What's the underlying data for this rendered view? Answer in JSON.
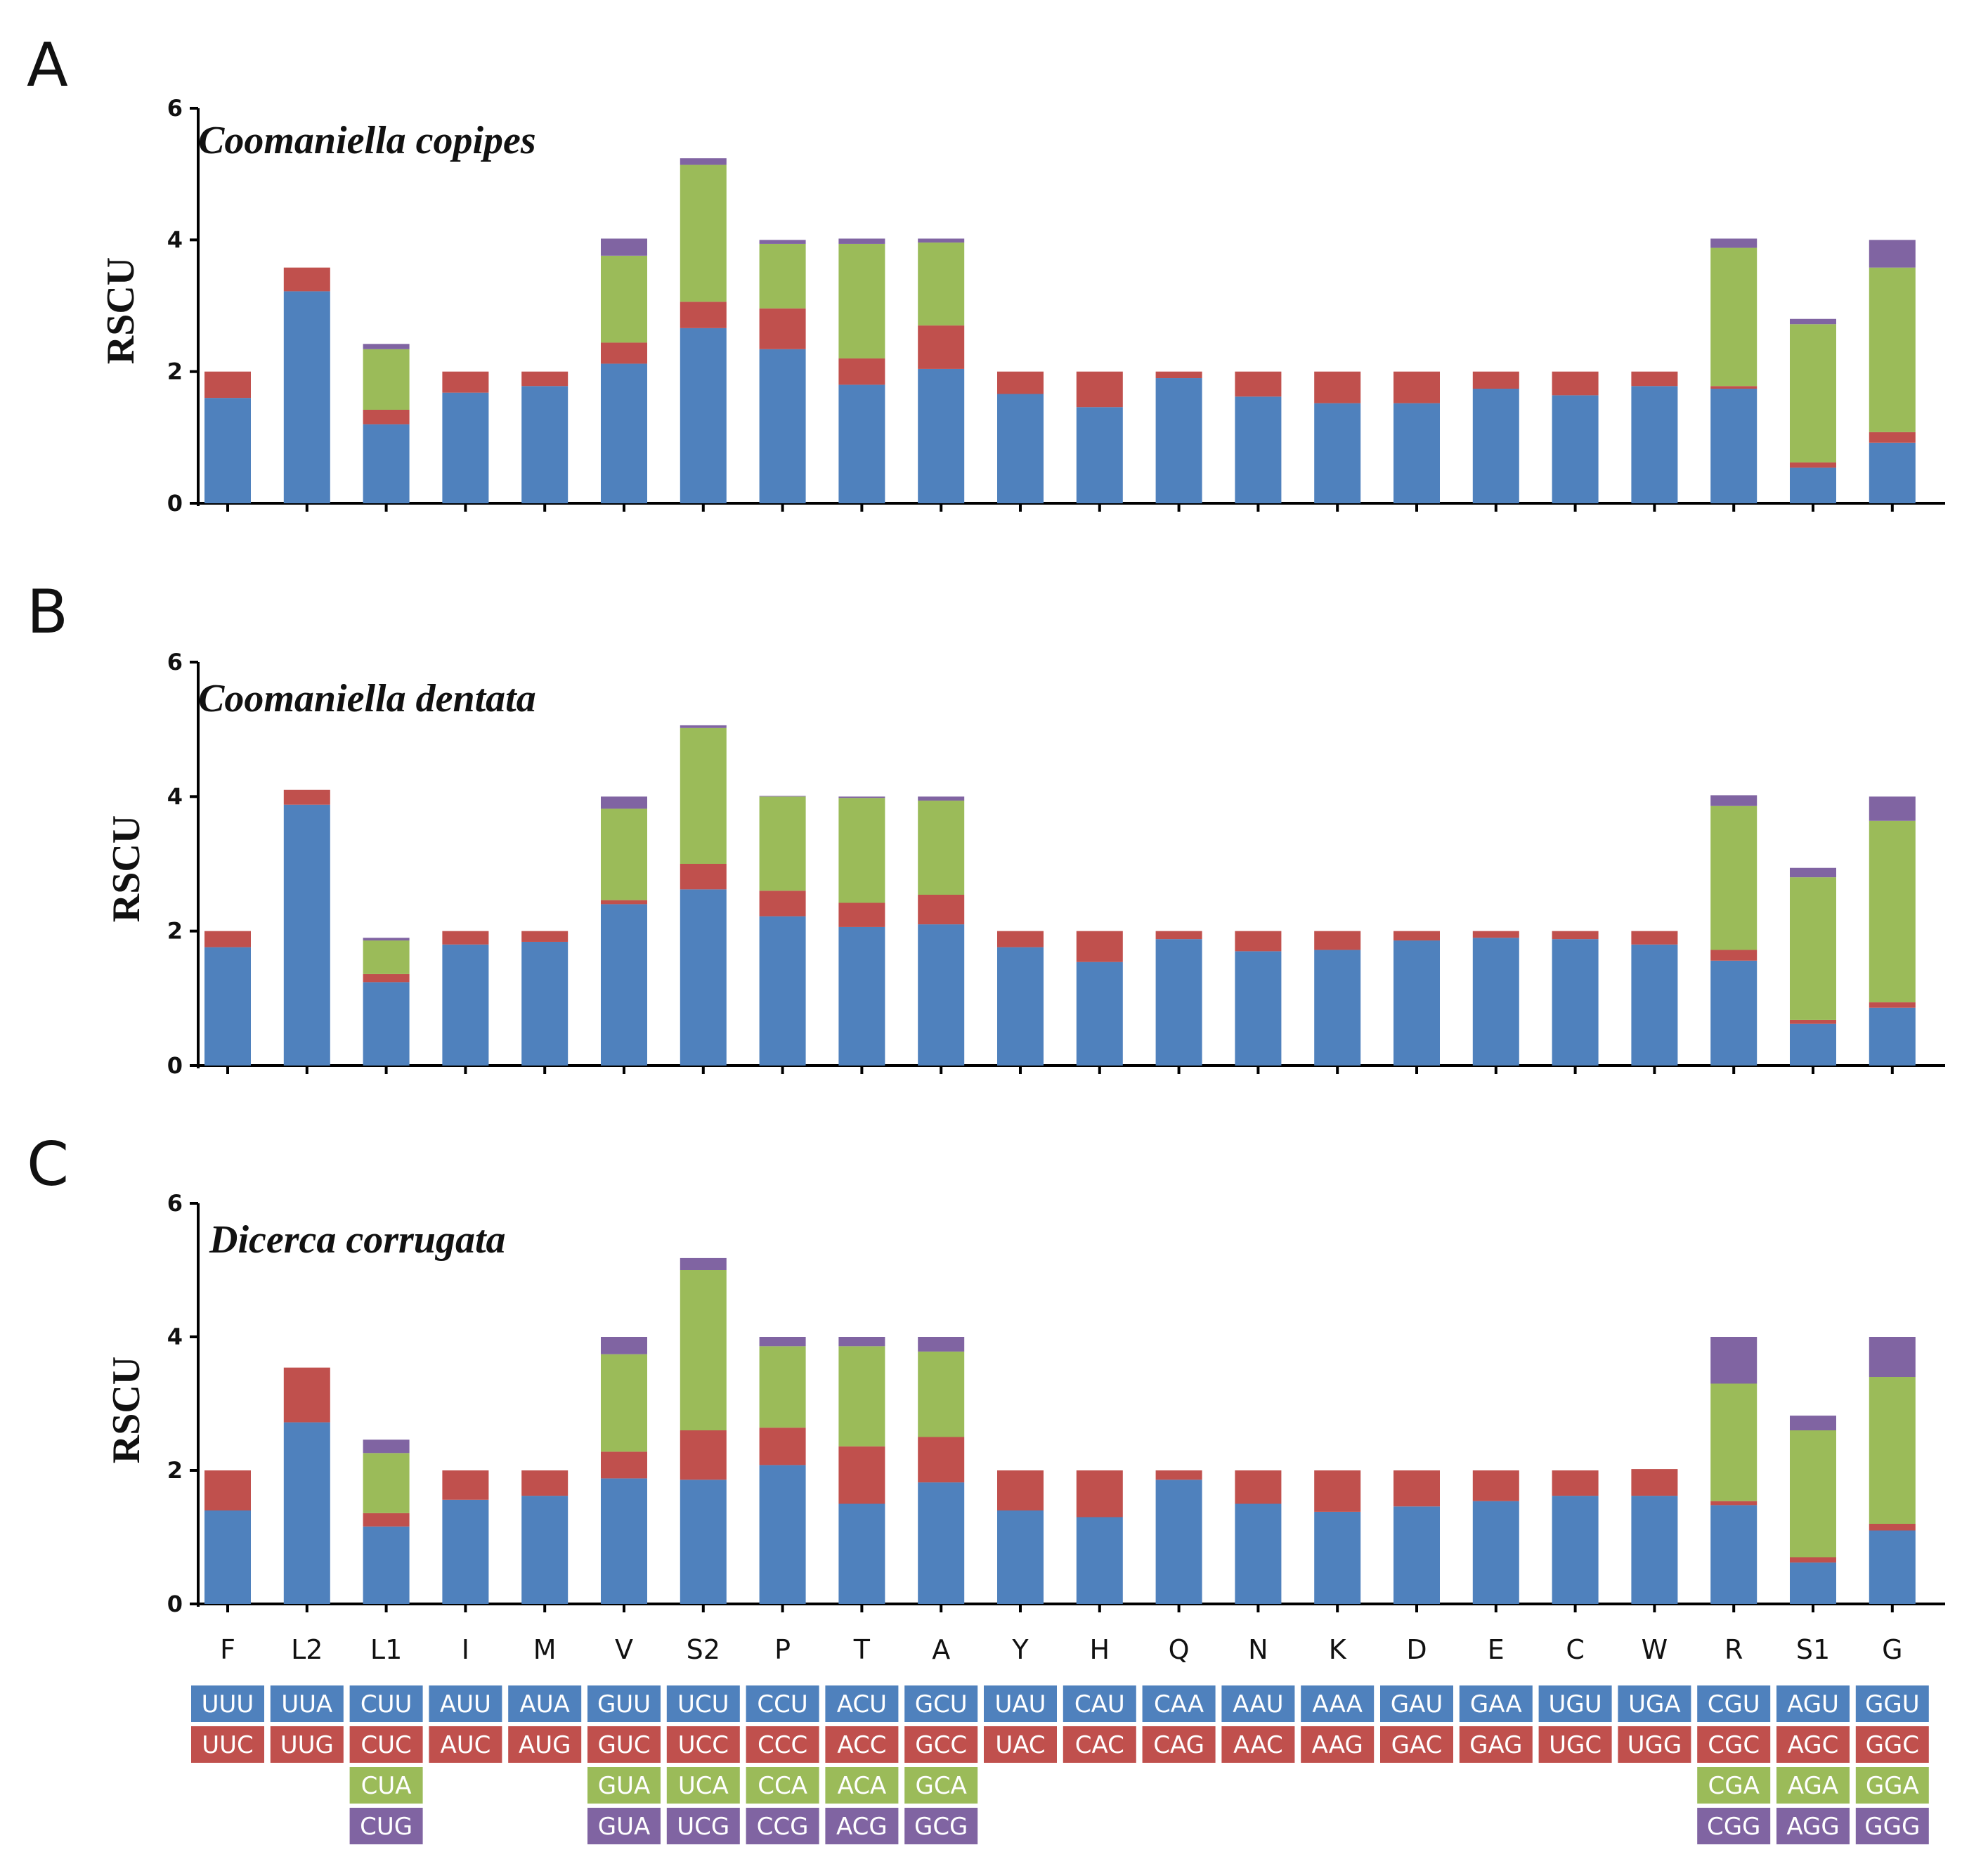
{
  "chart_data": {
    "type": "bar",
    "stacked": true,
    "ylabel": "RSCU",
    "ylim": [
      0,
      6
    ],
    "yticks": [
      0,
      2,
      4,
      6
    ],
    "categories": [
      "F",
      "L2",
      "L1",
      "I",
      "M",
      "V",
      "S2",
      "P",
      "T",
      "A",
      "Y",
      "H",
      "Q",
      "N",
      "K",
      "D",
      "E",
      "C",
      "W",
      "R",
      "S1",
      "G"
    ],
    "series_colors": [
      "#4f81bd",
      "#c0504d",
      "#9bbb59",
      "#8064a2"
    ],
    "codons": [
      [
        "UUU",
        "UUC"
      ],
      [
        "UUA",
        "UUG"
      ],
      [
        "CUU",
        "CUC",
        "CUA",
        "CUG"
      ],
      [
        "AUU",
        "AUC"
      ],
      [
        "AUA",
        "AUG"
      ],
      [
        "GUU",
        "GUC",
        "GUA",
        "GUA"
      ],
      [
        "UCU",
        "UCC",
        "UCA",
        "UCG"
      ],
      [
        "CCU",
        "CCC",
        "CCA",
        "CCG"
      ],
      [
        "ACU",
        "ACC",
        "ACA",
        "ACG"
      ],
      [
        "GCU",
        "GCC",
        "GCA",
        "GCG"
      ],
      [
        "UAU",
        "UAC"
      ],
      [
        "CAU",
        "CAC"
      ],
      [
        "CAA",
        "CAG"
      ],
      [
        "AAU",
        "AAC"
      ],
      [
        "AAA",
        "AAG"
      ],
      [
        "GAU",
        "GAC"
      ],
      [
        "GAA",
        "GAG"
      ],
      [
        "UGU",
        "UGC"
      ],
      [
        "UGA",
        "UGG"
      ],
      [
        "CGU",
        "CGC",
        "CGA",
        "CGG"
      ],
      [
        "AGU",
        "AGC",
        "AGA",
        "AGG"
      ],
      [
        "GGU",
        "GGC",
        "GGA",
        "GGG"
      ]
    ],
    "panels": [
      {
        "letter": "A",
        "title": "Coomaniella copipes",
        "stacks": [
          [
            1.6,
            0.4
          ],
          [
            3.22,
            0.36
          ],
          [
            1.2,
            0.22,
            0.92,
            0.08
          ],
          [
            1.68,
            0.32
          ],
          [
            1.78,
            0.22
          ],
          [
            2.12,
            0.32,
            1.32,
            0.26
          ],
          [
            2.66,
            0.4,
            2.08,
            0.1
          ],
          [
            2.34,
            0.62,
            0.98,
            0.06
          ],
          [
            1.8,
            0.4,
            1.74,
            0.08
          ],
          [
            2.04,
            0.66,
            1.26,
            0.06
          ],
          [
            1.66,
            0.34
          ],
          [
            1.46,
            0.54
          ],
          [
            1.9,
            0.1
          ],
          [
            1.62,
            0.38
          ],
          [
            1.52,
            0.48
          ],
          [
            1.52,
            0.48
          ],
          [
            1.74,
            0.26
          ],
          [
            1.64,
            0.36
          ],
          [
            1.78,
            0.22
          ],
          [
            1.74,
            0.04,
            2.1,
            0.14
          ],
          [
            0.54,
            0.08,
            2.1,
            0.08
          ],
          [
            0.92,
            0.16,
            2.5,
            0.42
          ]
        ]
      },
      {
        "letter": "B",
        "title": "Coomaniella dentata",
        "stacks": [
          [
            1.76,
            0.24
          ],
          [
            3.88,
            0.22
          ],
          [
            1.24,
            0.12,
            0.5,
            0.04
          ],
          [
            1.8,
            0.2
          ],
          [
            1.84,
            0.16
          ],
          [
            2.4,
            0.06,
            1.36,
            0.18
          ],
          [
            2.62,
            0.38,
            2.02,
            0.04
          ],
          [
            2.22,
            0.38,
            1.4,
            0.01
          ],
          [
            2.06,
            0.36,
            1.56,
            0.02
          ],
          [
            2.1,
            0.44,
            1.4,
            0.06
          ],
          [
            1.76,
            0.24
          ],
          [
            1.54,
            0.46
          ],
          [
            1.88,
            0.12
          ],
          [
            1.7,
            0.3
          ],
          [
            1.72,
            0.28
          ],
          [
            1.86,
            0.14
          ],
          [
            1.9,
            0.1
          ],
          [
            1.88,
            0.12
          ],
          [
            1.8,
            0.2
          ],
          [
            1.56,
            0.16,
            2.14,
            0.16
          ],
          [
            0.62,
            0.06,
            2.12,
            0.14
          ],
          [
            0.86,
            0.08,
            2.7,
            0.36
          ]
        ]
      },
      {
        "letter": "C",
        "title": "Dicerca corrugata",
        "stacks": [
          [
            1.4,
            0.6
          ],
          [
            2.72,
            0.82
          ],
          [
            1.16,
            0.2,
            0.9,
            0.2
          ],
          [
            1.56,
            0.44
          ],
          [
            1.62,
            0.38
          ],
          [
            1.88,
            0.4,
            1.46,
            0.26
          ],
          [
            1.86,
            0.74,
            2.4,
            0.18
          ],
          [
            2.08,
            0.56,
            1.22,
            0.14
          ],
          [
            1.5,
            0.86,
            1.5,
            0.14
          ],
          [
            1.82,
            0.68,
            1.28,
            0.22
          ],
          [
            1.4,
            0.6
          ],
          [
            1.3,
            0.7
          ],
          [
            1.86,
            0.14
          ],
          [
            1.5,
            0.5
          ],
          [
            1.38,
            0.62
          ],
          [
            1.46,
            0.54
          ],
          [
            1.54,
            0.46
          ],
          [
            1.62,
            0.38
          ],
          [
            1.62,
            0.4
          ],
          [
            1.48,
            0.06,
            1.76,
            0.7
          ],
          [
            0.62,
            0.08,
            1.9,
            0.22
          ],
          [
            1.1,
            0.1,
            2.2,
            0.6
          ]
        ]
      }
    ]
  }
}
